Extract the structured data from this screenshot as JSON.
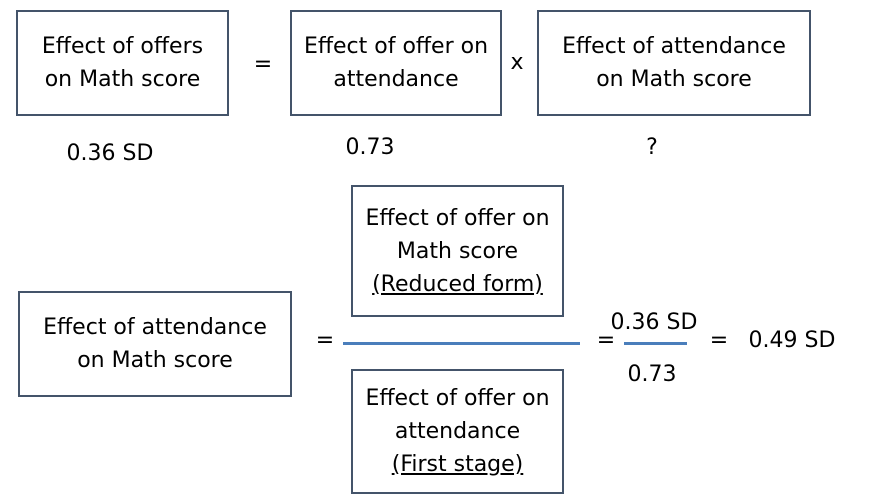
{
  "row1": {
    "box1": {
      "line1": "Effect of offers",
      "line2": "on Math score"
    },
    "eq": "=",
    "box2": {
      "line1": "Effect of offer on",
      "line2": "attendance"
    },
    "times": "x",
    "box3": {
      "line1": "Effect of attendance",
      "line2": "on Math score"
    },
    "val1": "0.36 SD",
    "val2": "0.73",
    "val3": "?"
  },
  "row2": {
    "lhs": {
      "line1": "Effect of attendance",
      "line2": "on Math score"
    },
    "eq1": "=",
    "numerator": {
      "line1": "Effect of offer on",
      "line2": "Math score",
      "line3": "(Reduced form)"
    },
    "denominator": {
      "line1": "Effect of offer on",
      "line2": "attendance",
      "line3": "(First stage)"
    },
    "eq2": "=",
    "frac_num": "0.36 SD",
    "frac_den": "0.73",
    "eq3": "=",
    "result": "0.49 SD"
  },
  "colors": {
    "box_border": "#44546a",
    "fraction_line": "#4a7ebb"
  }
}
